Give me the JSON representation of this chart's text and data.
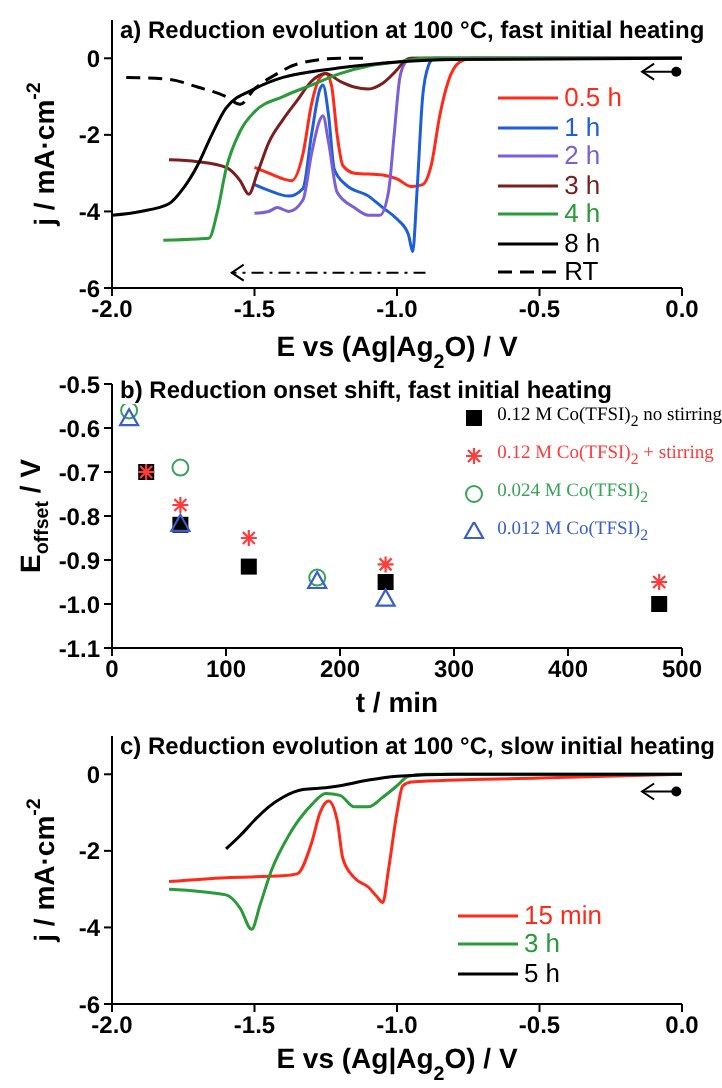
{
  "chart_data": [
    {
      "type": "line",
      "title": "a) Reduction evolution at 100 °C, fast initial heating",
      "xlabel": "E vs (Ag|Ag$_{2}$O) / V",
      "ylabel": "j / mA·cm$^{-2}$",
      "xlim": [
        -2,
        0
      ],
      "xticks": [
        {
          "value": -2,
          "label": "-2.0"
        },
        -1.5,
        {
          "value": -1,
          "label": "-1.0"
        },
        -0.5,
        {
          "value": 0,
          "label": "0.0"
        }
      ],
      "ylim": [
        -6,
        1
      ],
      "yticks": [
        -6,
        -4,
        -2,
        0
      ],
      "legend": "right",
      "series": [
        {
          "name": "0.5 h",
          "color": "#ff2a1a",
          "x": [
            -1.5,
            -1.45,
            -1.4,
            -1.37,
            -1.33,
            -1.3,
            -1.27,
            -1.25,
            -1.23,
            -1.21,
            -1.19,
            -1.15,
            -1.05,
            -1,
            -0.95,
            -0.91,
            -0.88,
            -0.85,
            -0.82,
            -0.78,
            -0.74,
            0
          ],
          "values": [
            -2.85,
            -3,
            -3.15,
            -3.2,
            -2.5,
            -1.2,
            -0.5,
            -0.4,
            -0.7,
            -2,
            -2.8,
            -3,
            -3.05,
            -3.15,
            -3.35,
            -3.3,
            -2.8,
            -1.5,
            -0.6,
            -0.1,
            0,
            0
          ]
        },
        {
          "name": "1 h",
          "color": "#1f5fd6",
          "x": [
            -1.5,
            -1.45,
            -1.38,
            -1.33,
            -1.3,
            -1.27,
            -1.26,
            -1.24,
            -1.22,
            -1.18,
            -1.1,
            -1.05,
            -1,
            -0.96,
            -0.945,
            -0.93,
            -0.91,
            -0.89,
            -0.87,
            0
          ],
          "values": [
            -3.3,
            -3.45,
            -3.6,
            -3.4,
            -2,
            -0.8,
            -0.7,
            -1.5,
            -2.9,
            -3.3,
            -3.6,
            -3.9,
            -4.2,
            -4.6,
            -5.05,
            -3.5,
            -1,
            -0.2,
            0,
            0
          ]
        },
        {
          "name": "2 h",
          "color": "#7b5fd6",
          "x": [
            -1.5,
            -1.45,
            -1.42,
            -1.38,
            -1.33,
            -1.3,
            -1.27,
            -1.26,
            -1.24,
            -1.21,
            -1.15,
            -1.1,
            -1.06,
            -1.03,
            -1.01,
            -0.99,
            -0.97,
            -0.95,
            0
          ],
          "values": [
            -4.05,
            -4,
            -3.9,
            -4,
            -3.7,
            -2.5,
            -1.6,
            -1.5,
            -2.2,
            -3.5,
            -3.9,
            -4.1,
            -4.1,
            -3.5,
            -2,
            -0.5,
            -0.1,
            0,
            0
          ]
        },
        {
          "name": "3 h",
          "color": "#7a1f1f",
          "x": [
            -1.8,
            -1.7,
            -1.6,
            -1.55,
            -1.52,
            -1.49,
            -1.45,
            -1.4,
            -1.35,
            -1.3,
            -1.25,
            -1.2,
            -1.15,
            -1.1,
            -1.05,
            -1,
            -0.97,
            -0.95,
            0
          ],
          "values": [
            -2.65,
            -2.7,
            -2.85,
            -3.2,
            -3.55,
            -3,
            -2.2,
            -1.6,
            -1.1,
            -0.6,
            -0.4,
            -0.6,
            -0.75,
            -0.8,
            -0.65,
            -0.3,
            -0.05,
            0,
            0
          ]
        },
        {
          "name": "4 h",
          "color": "#2a9a3a",
          "x": [
            -1.82,
            -1.7,
            -1.66,
            -1.63,
            -1.6,
            -1.55,
            -1.5,
            -1.4,
            -1.3,
            -1.2,
            -1.1,
            -1,
            -0.9,
            0
          ],
          "values": [
            -4.75,
            -4.72,
            -4.7,
            -4,
            -2.9,
            -1.9,
            -1.4,
            -1,
            -0.7,
            -0.4,
            -0.2,
            -0.1,
            0,
            0
          ]
        },
        {
          "name": "8 h",
          "color": "#000000",
          "x": [
            -2,
            -1.9,
            -1.8,
            -1.75,
            -1.7,
            -1.65,
            -1.6,
            -1.5,
            -1.4,
            -1.3,
            -1.2,
            -1,
            -0.8,
            0
          ],
          "values": [
            -4.1,
            -4,
            -3.8,
            -3.4,
            -2.8,
            -2,
            -1.3,
            -0.8,
            -0.5,
            -0.35,
            -0.25,
            -0.1,
            -0.03,
            0
          ]
        },
        {
          "name": "RT",
          "color": "#000000",
          "line_style": "dashed",
          "x": [
            -1.95,
            -1.8,
            -1.7,
            -1.6,
            -1.55,
            -1.5,
            -1.42,
            -1.35,
            -1.2,
            -1.1
          ],
          "values": [
            -0.5,
            -0.55,
            -0.75,
            -1,
            -1.2,
            -0.8,
            -0.4,
            -0.15,
            0,
            0
          ]
        }
      ]
    },
    {
      "type": "scatter",
      "title": "b) Reduction onset shift, fast initial heating",
      "xlabel": "t / min",
      "ylabel": "E$_{offset}$ / V",
      "xlim": [
        0,
        500
      ],
      "xticks": [
        0,
        100,
        200,
        300,
        400,
        500
      ],
      "ylim": [
        -1.1,
        -0.5
      ],
      "yticks": [
        {
          "value": -1.1,
          "label": "-1.1"
        },
        {
          "value": -1,
          "label": "-1.0"
        },
        -0.9,
        -0.8,
        -0.7,
        -0.6,
        -0.5
      ],
      "legend": "top right",
      "series": [
        {
          "name": "0.12 M Co(TFSI)$_{2}$ no stirring",
          "color": "#000000",
          "marker": "square",
          "x": [
            30,
            60,
            120,
            240,
            480
          ],
          "values": [
            -0.7,
            -0.82,
            -0.915,
            -0.95,
            -1
          ]
        },
        {
          "name": "0.12 M Co(TFSI)$_{2}$ + stirring",
          "color": "#ff3b3b",
          "marker": "cross",
          "x": [
            30,
            60,
            120,
            240,
            480
          ],
          "values": [
            -0.7,
            -0.775,
            -0.85,
            -0.91,
            -0.95
          ]
        },
        {
          "name": "0.024 M Co(TFSI)$_{2}$",
          "color": "#3aa35a",
          "marker": "circle",
          "x": [
            15,
            60,
            180
          ],
          "values": [
            -0.56,
            -0.69,
            -0.94
          ]
        },
        {
          "name": "0.012 M Co(TFSI)$_{2}$",
          "color": "#3a5fc8",
          "marker": "triangle",
          "x": [
            15,
            60,
            180,
            240
          ],
          "values": [
            -0.58,
            -0.82,
            -0.95,
            -0.99
          ]
        }
      ]
    },
    {
      "type": "line",
      "title": "c) Reduction evolution at 100 °C, slow initial heating",
      "xlabel": "E vs (Ag|Ag$_{2}$O) / V",
      "ylabel": "j / mA·cm$^{-2}$",
      "xlim": [
        -2,
        0
      ],
      "xticks": [
        {
          "value": -2,
          "label": "-2.0"
        },
        -1.5,
        {
          "value": -1,
          "label": "-1.0"
        },
        -0.5,
        {
          "value": 0,
          "label": "0.0"
        }
      ],
      "ylim": [
        -6,
        1
      ],
      "yticks": [
        -6,
        -4,
        -2,
        0
      ],
      "legend": "bottom right",
      "series": [
        {
          "name": "15 min",
          "color": "#ff2a1a",
          "x": [
            -1.8,
            -1.6,
            -1.4,
            -1.35,
            -1.3,
            -1.27,
            -1.24,
            -1.21,
            -1.19,
            -1.15,
            -1.1,
            -1.07,
            -1.05,
            -1.03,
            -1,
            -0.98,
            -0.95,
            -0.5,
            0
          ],
          "values": [
            -2.8,
            -2.7,
            -2.65,
            -2.6,
            -1.8,
            -1,
            -0.7,
            -1.2,
            -2.2,
            -2.7,
            -2.95,
            -3.2,
            -3.35,
            -2.5,
            -1,
            -0.3,
            -0.2,
            -0.1,
            0
          ]
        },
        {
          "name": "3 h",
          "color": "#2a9a3a",
          "x": [
            -1.8,
            -1.6,
            -1.55,
            -1.51,
            -1.48,
            -1.44,
            -1.38,
            -1.3,
            -1.25,
            -1.2,
            -1.15,
            -1.1,
            -1.05,
            -1,
            -0.96,
            -0.9,
            0
          ],
          "values": [
            -3,
            -3.15,
            -3.5,
            -4.05,
            -3.4,
            -2.5,
            -1.6,
            -0.8,
            -0.5,
            -0.55,
            -0.85,
            -0.85,
            -0.6,
            -0.3,
            -0.05,
            0,
            0
          ]
        },
        {
          "name": "5 h",
          "color": "#000000",
          "x": [
            -1.6,
            -1.55,
            -1.5,
            -1.45,
            -1.4,
            -1.33,
            -1.25,
            -1.2,
            -1.1,
            -1,
            -0.8,
            0
          ],
          "values": [
            -1.95,
            -1.6,
            -1.2,
            -0.85,
            -0.6,
            -0.4,
            -0.35,
            -0.3,
            -0.15,
            -0.05,
            0,
            0
          ]
        }
      ]
    }
  ]
}
